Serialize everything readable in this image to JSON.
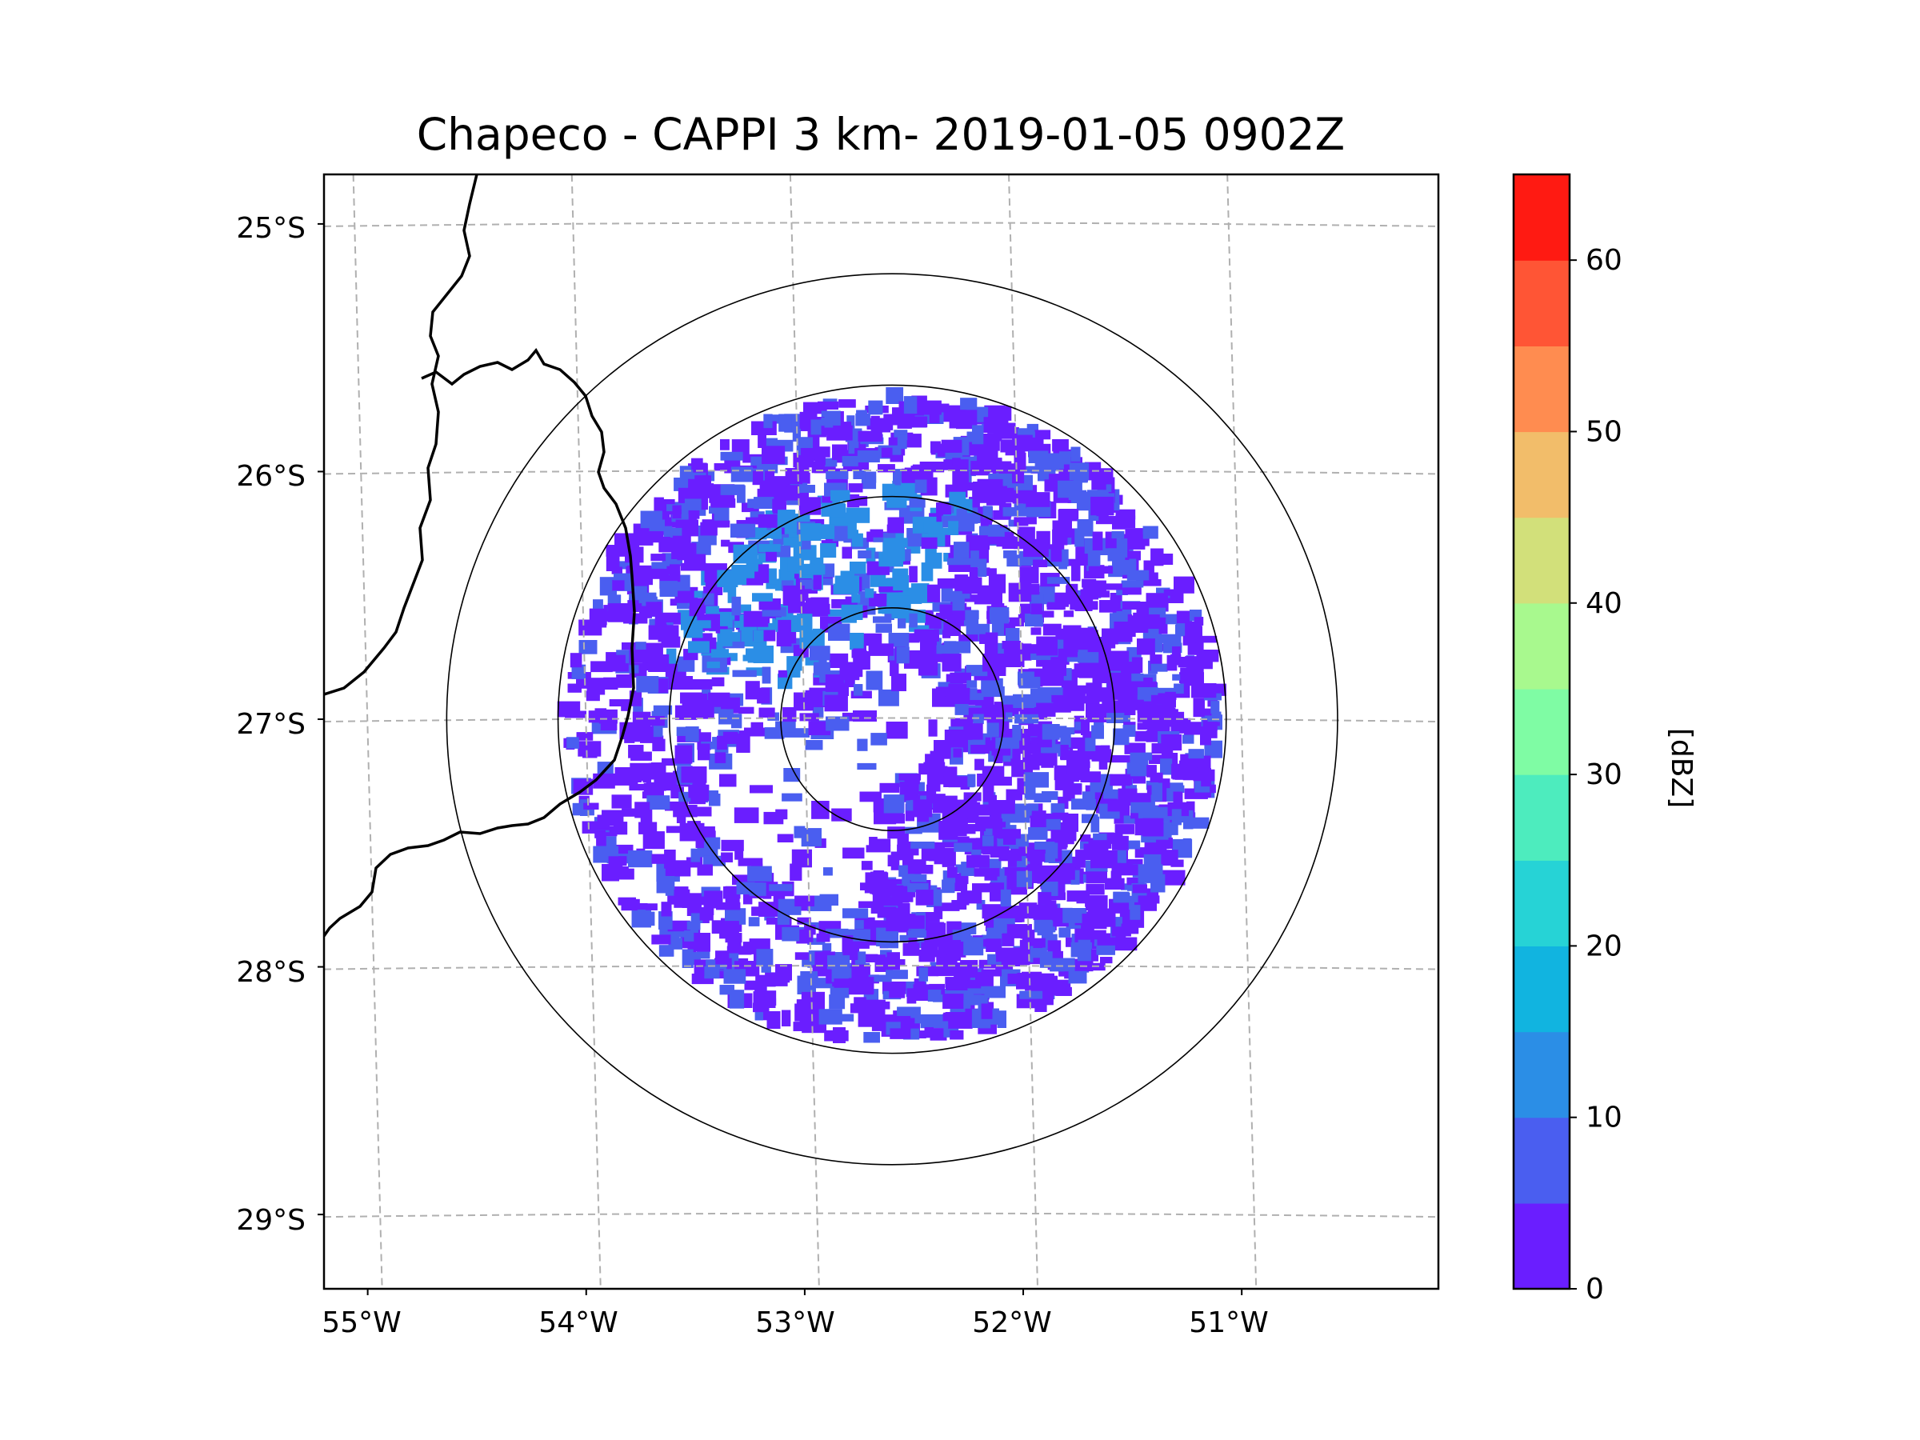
{
  "chart_data": {
    "type": "heatmap",
    "title": "Chapeco - CAPPI 3 km- 2019-01-05 0902Z",
    "subtype": "radar-reflectivity-map",
    "x_ticks": [
      "55°W",
      "54°W",
      "53°W",
      "52°W",
      "51°W"
    ],
    "y_ticks": [
      "25°S",
      "26°S",
      "27°S",
      "28°S",
      "29°S"
    ],
    "lon_values": [
      -55,
      -54,
      -53,
      -52,
      -51
    ],
    "lat_values": [
      -25,
      -26,
      -27,
      -28,
      -29
    ],
    "xlim": [
      -55.2,
      -50.1
    ],
    "ylim": [
      -29.3,
      -24.8
    ],
    "radar_center": {
      "lon": -52.6,
      "lat": -27.0
    },
    "range_rings_km": [
      50,
      100,
      150,
      200
    ],
    "grid": true,
    "colorbar": {
      "label": "[dBZ]",
      "ticks": [
        "0",
        "10",
        "20",
        "30",
        "40",
        "50",
        "60"
      ],
      "tick_values": [
        0,
        10,
        20,
        30,
        40,
        50,
        60
      ],
      "min": 0,
      "max": 65,
      "step": 5,
      "colors": [
        "#6a1eff",
        "#4a5ef0",
        "#2b8ee6",
        "#11b4e0",
        "#26d3d6",
        "#4decbe",
        "#7ffca4",
        "#a8f98e",
        "#d2e07a",
        "#f2bd6a",
        "#ff8c50",
        "#ff5535",
        "#ff1a12"
      ]
    },
    "echo_colors": {
      "weak": "#6a1eff",
      "mid": "#4a5ef0",
      "strong": "#2b8ee6"
    },
    "border_color": "#000000"
  }
}
